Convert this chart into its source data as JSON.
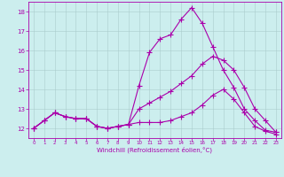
{
  "xlabel": "Windchill (Refroidissement éolien,°C)",
  "x_values": [
    0,
    1,
    2,
    3,
    4,
    5,
    6,
    7,
    8,
    9,
    10,
    11,
    12,
    13,
    14,
    15,
    16,
    17,
    18,
    19,
    20,
    21,
    22,
    23
  ],
  "line1_y": [
    12.0,
    12.4,
    12.8,
    12.6,
    12.5,
    12.5,
    12.1,
    12.0,
    12.1,
    12.2,
    14.2,
    15.9,
    16.6,
    16.8,
    17.6,
    18.2,
    17.4,
    16.2,
    15.0,
    14.1,
    13.0,
    12.4,
    11.9,
    11.8
  ],
  "line2_y": [
    12.0,
    12.4,
    12.8,
    12.6,
    12.5,
    12.5,
    12.1,
    12.0,
    12.1,
    12.2,
    13.0,
    13.3,
    13.6,
    13.9,
    14.3,
    14.7,
    15.3,
    15.7,
    15.5,
    15.0,
    14.1,
    13.0,
    12.4,
    11.8
  ],
  "line3_y": [
    12.0,
    12.4,
    12.8,
    12.6,
    12.5,
    12.5,
    12.1,
    12.0,
    12.1,
    12.2,
    12.3,
    12.3,
    12.3,
    12.4,
    12.6,
    12.8,
    13.2,
    13.7,
    14.0,
    13.5,
    12.8,
    12.1,
    11.85,
    11.7
  ],
  "line_color": "#aa00aa",
  "bg_color": "#cceeee",
  "grid_color": "#aacccc",
  "ylim": [
    11.5,
    18.5
  ],
  "xlim": [
    -0.5,
    23.5
  ],
  "yticks": [
    12,
    13,
    14,
    15,
    16,
    17,
    18
  ],
  "xticks": [
    0,
    1,
    2,
    3,
    4,
    5,
    6,
    7,
    8,
    9,
    10,
    11,
    12,
    13,
    14,
    15,
    16,
    17,
    18,
    19,
    20,
    21,
    22,
    23
  ],
  "tick_fontsize": 5,
  "xlabel_fontsize": 5,
  "marker": "+"
}
